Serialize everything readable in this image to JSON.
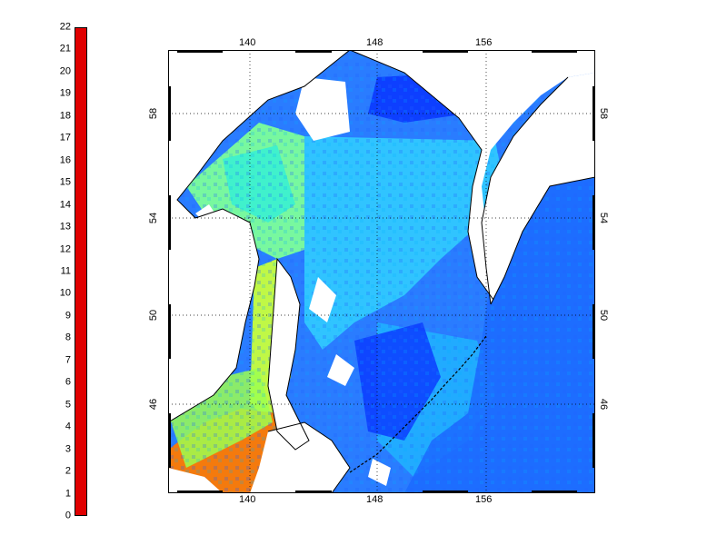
{
  "colorbar": {
    "ticks": [
      "0",
      "1",
      "2",
      "3",
      "4",
      "5",
      "6",
      "7",
      "8",
      "9",
      "10",
      "11",
      "12",
      "13",
      "14",
      "15",
      "16",
      "17",
      "18",
      "19",
      "20",
      "21",
      "22"
    ],
    "min": 0,
    "max": 22,
    "colormap": [
      "#0000a8",
      "#0030ff",
      "#0080ff",
      "#00c0ff",
      "#30ffd0",
      "#a0ff60",
      "#ffff00",
      "#ffb000",
      "#ff5000",
      "#e00000"
    ]
  },
  "map": {
    "lon_ticks_top": [
      "140",
      "148",
      "156"
    ],
    "lon_ticks_bottom": [
      "140",
      "148",
      "156"
    ],
    "lat_ticks_left": [
      "58",
      "54",
      "50",
      "46"
    ],
    "lat_ticks_right": [
      "58",
      "54",
      "50",
      "46"
    ],
    "land_color": "#ffffff",
    "coast_color": "#000000",
    "grid": "dotted"
  }
}
